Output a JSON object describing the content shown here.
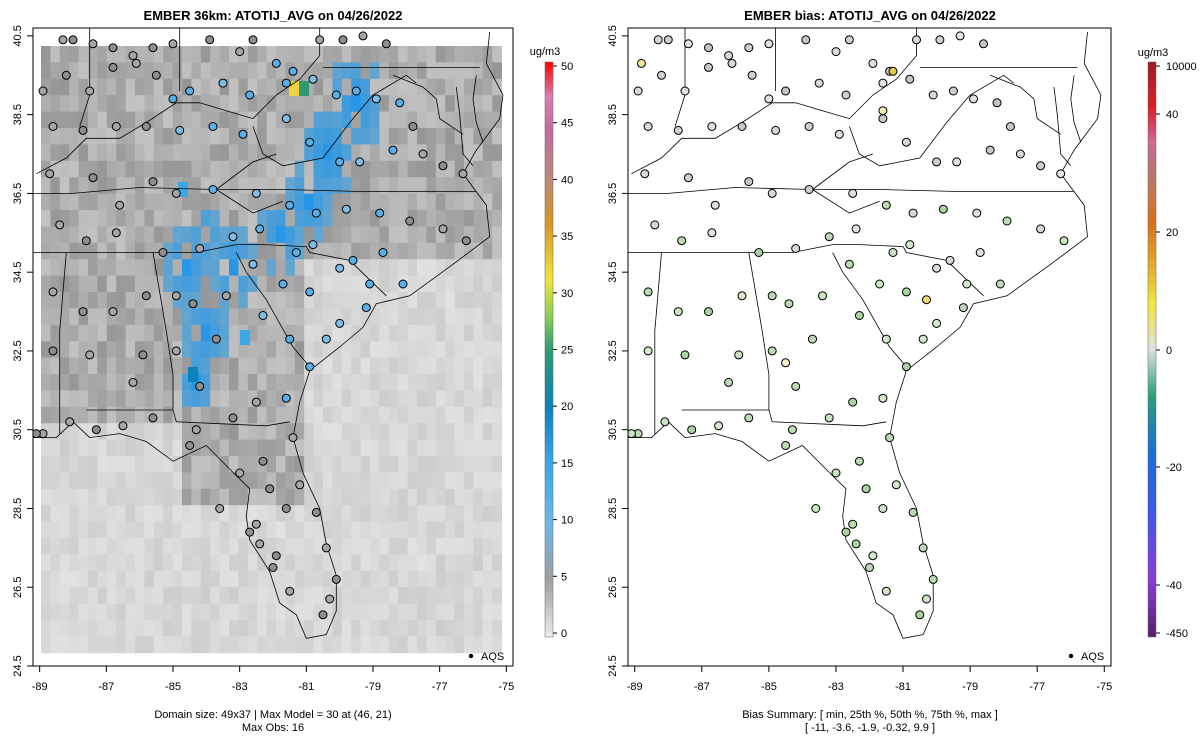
{
  "left_panel": {
    "title": "EMBER 36km: ATOTIJ_AVG on 04/26/2022",
    "footer_line1": "Domain size: 49x37 | Max Model = 30 at (46, 21)",
    "footer_line2": "Max Obs: 16",
    "legend_label": "AQS",
    "colorbar": {
      "unit": "ug/m3",
      "ticks": [
        "50",
        "45",
        "40",
        "35",
        "30",
        "25",
        "20",
        "15",
        "10",
        "5",
        "0"
      ],
      "tick_values": [
        50,
        45,
        40,
        35,
        30,
        25,
        20,
        15,
        10,
        5,
        0
      ],
      "range": [
        0,
        50
      ]
    }
  },
  "right_panel": {
    "title": "EMBER bias: ATOTIJ_AVG on 04/26/2022",
    "footer_line1": "Bias Summary: [ min, 25th %, 50th %, 75th %, max ]",
    "footer_line2": "[ -11,   -3.6,   -1.9,   -0.32,   9.9 ]",
    "legend_label": "AQS",
    "colorbar": {
      "unit": "ug/m3",
      "ticks": [
        "10000",
        "40",
        "20",
        "0",
        "-20",
        "-40",
        "-450"
      ],
      "tick_values": [
        10000,
        40,
        20,
        0,
        -20,
        -40,
        -450
      ]
    },
    "bias_summary": {
      "min": -11,
      "p25": -3.6,
      "p50": -1.9,
      "p75": -0.32,
      "max": 9.9
    }
  },
  "axes": {
    "x_ticks": [
      "-89",
      "-87",
      "-85",
      "-83",
      "-81",
      "-79",
      "-77",
      "-75"
    ],
    "x_values": [
      -89,
      -87,
      -85,
      -83,
      -81,
      -79,
      -77,
      -75
    ],
    "y_ticks": [
      "40.5",
      "38.5",
      "36.5",
      "34.5",
      "32.5",
      "30.5",
      "28.5",
      "26.5",
      "24.5"
    ],
    "y_values": [
      40.5,
      38.5,
      36.5,
      34.5,
      32.5,
      30.5,
      28.5,
      26.5,
      24.5
    ],
    "lon_range": [
      -89.2,
      -74.8
    ],
    "lat_range": [
      24.5,
      40.7
    ]
  },
  "chart_data": {
    "type": "map",
    "variable": "ATOTIJ_AVG",
    "date": "04/26/2022",
    "model": "EMBER 36km",
    "domain_size": "49x37",
    "max_model": 30,
    "max_model_cell": [
      46,
      21
    ],
    "max_obs": 16,
    "sites_lonlat": [
      [
        -88.3,
        40.4
      ],
      [
        -88.0,
        40.4
      ],
      [
        -87.4,
        40.3
      ],
      [
        -86.8,
        40.2
      ],
      [
        -86.2,
        40.0
      ],
      [
        -85.6,
        40.2
      ],
      [
        -85.0,
        40.3
      ],
      [
        -83.9,
        40.4
      ],
      [
        -83.0,
        40.1
      ],
      [
        -82.6,
        40.4
      ],
      [
        -81.9,
        39.8
      ],
      [
        -81.4,
        39.6
      ],
      [
        -80.6,
        40.4
      ],
      [
        -79.9,
        40.4
      ],
      [
        -79.3,
        40.5
      ],
      [
        -78.6,
        40.3
      ],
      [
        -88.9,
        39.1
      ],
      [
        -88.2,
        39.5
      ],
      [
        -87.5,
        39.1
      ],
      [
        -86.8,
        39.7
      ],
      [
        -86.1,
        39.8
      ],
      [
        -85.5,
        39.5
      ],
      [
        -85.0,
        38.9
      ],
      [
        -84.5,
        39.1
      ],
      [
        -83.5,
        39.3
      ],
      [
        -82.7,
        39.0
      ],
      [
        -81.6,
        39.3
      ],
      [
        -80.8,
        39.4
      ],
      [
        -80.1,
        39.0
      ],
      [
        -79.5,
        39.1
      ],
      [
        -78.9,
        38.9
      ],
      [
        -78.2,
        38.8
      ],
      [
        -88.6,
        38.2
      ],
      [
        -87.7,
        38.1
      ],
      [
        -86.7,
        38.2
      ],
      [
        -85.8,
        38.2
      ],
      [
        -84.8,
        38.1
      ],
      [
        -83.8,
        38.2
      ],
      [
        -82.9,
        38.0
      ],
      [
        -81.6,
        38.4
      ],
      [
        -80.9,
        37.8
      ],
      [
        -80.0,
        37.3
      ],
      [
        -79.4,
        37.3
      ],
      [
        -78.4,
        37.6
      ],
      [
        -77.5,
        37.5
      ],
      [
        -76.9,
        37.2
      ],
      [
        -76.3,
        37.0
      ],
      [
        -77.8,
        38.2
      ],
      [
        -88.7,
        37.0
      ],
      [
        -87.4,
        36.9
      ],
      [
        -86.6,
        36.2
      ],
      [
        -85.6,
        36.8
      ],
      [
        -84.9,
        36.5
      ],
      [
        -83.8,
        36.6
      ],
      [
        -82.5,
        36.5
      ],
      [
        -81.5,
        36.2
      ],
      [
        -80.7,
        36.0
      ],
      [
        -79.8,
        36.1
      ],
      [
        -78.8,
        36.0
      ],
      [
        -77.9,
        35.8
      ],
      [
        -76.9,
        35.6
      ],
      [
        -76.2,
        35.3
      ],
      [
        -78.7,
        35.0
      ],
      [
        -80.8,
        35.2
      ],
      [
        -88.4,
        35.7
      ],
      [
        -87.6,
        35.3
      ],
      [
        -86.7,
        35.5
      ],
      [
        -85.3,
        35.0
      ],
      [
        -84.2,
        35.1
      ],
      [
        -83.2,
        35.4
      ],
      [
        -82.4,
        35.6
      ],
      [
        -81.3,
        35.0
      ],
      [
        -80.0,
        34.6
      ],
      [
        -79.1,
        34.2
      ],
      [
        -78.1,
        34.2
      ],
      [
        -82.6,
        34.7
      ],
      [
        -81.7,
        34.2
      ],
      [
        -80.9,
        34.0
      ],
      [
        -80.0,
        33.2
      ],
      [
        -79.2,
        33.6
      ],
      [
        -88.6,
        34.0
      ],
      [
        -87.7,
        33.5
      ],
      [
        -86.8,
        33.5
      ],
      [
        -85.8,
        33.9
      ],
      [
        -84.9,
        33.9
      ],
      [
        -84.4,
        33.7
      ],
      [
        -83.4,
        33.9
      ],
      [
        -82.3,
        33.4
      ],
      [
        -81.5,
        32.8
      ],
      [
        -83.7,
        32.8
      ],
      [
        -84.9,
        32.5
      ],
      [
        -85.9,
        32.4
      ],
      [
        -87.5,
        32.4
      ],
      [
        -88.6,
        32.5
      ],
      [
        -86.2,
        31.7
      ],
      [
        -84.2,
        31.6
      ],
      [
        -88.1,
        30.7
      ],
      [
        -87.3,
        30.5
      ],
      [
        -86.5,
        30.6
      ],
      [
        -85.6,
        30.8
      ],
      [
        -84.3,
        30.5
      ],
      [
        -83.2,
        30.8
      ],
      [
        -82.5,
        31.2
      ],
      [
        -81.6,
        31.3
      ],
      [
        -81.4,
        30.3
      ],
      [
        -82.3,
        29.7
      ],
      [
        -83.0,
        29.4
      ],
      [
        -82.1,
        29.0
      ],
      [
        -81.2,
        29.1
      ],
      [
        -80.7,
        28.4
      ],
      [
        -82.5,
        28.1
      ],
      [
        -81.6,
        28.5
      ],
      [
        -82.4,
        27.6
      ],
      [
        -81.9,
        27.3
      ],
      [
        -80.4,
        27.5
      ],
      [
        -80.1,
        26.7
      ],
      [
        -80.3,
        26.2
      ],
      [
        -80.5,
        25.8
      ],
      [
        -81.5,
        26.4
      ],
      [
        -82.0,
        27.0
      ],
      [
        -88.9,
        30.4
      ],
      [
        -89.1,
        30.4
      ],
      [
        -80.9,
        32.1
      ],
      [
        -80.4,
        32.8
      ],
      [
        -79.6,
        34.8
      ],
      [
        -84.5,
        30.1
      ],
      [
        -83.6,
        28.5
      ],
      [
        -82.7,
        27.9
      ]
    ],
    "bias_series": [
      {
        "lon": -81.3,
        "lat": 39.6,
        "bias": 9.9
      },
      {
        "lon": -80.3,
        "lat": 33.8,
        "bias": 8.5
      },
      {
        "lon": -88.8,
        "lat": 39.8,
        "bias": 5.0
      },
      {
        "lon": -81.6,
        "lat": 38.6,
        "bias": 4.0
      },
      {
        "lon": -84.5,
        "lat": 32.2,
        "bias": 3.0
      }
    ]
  }
}
